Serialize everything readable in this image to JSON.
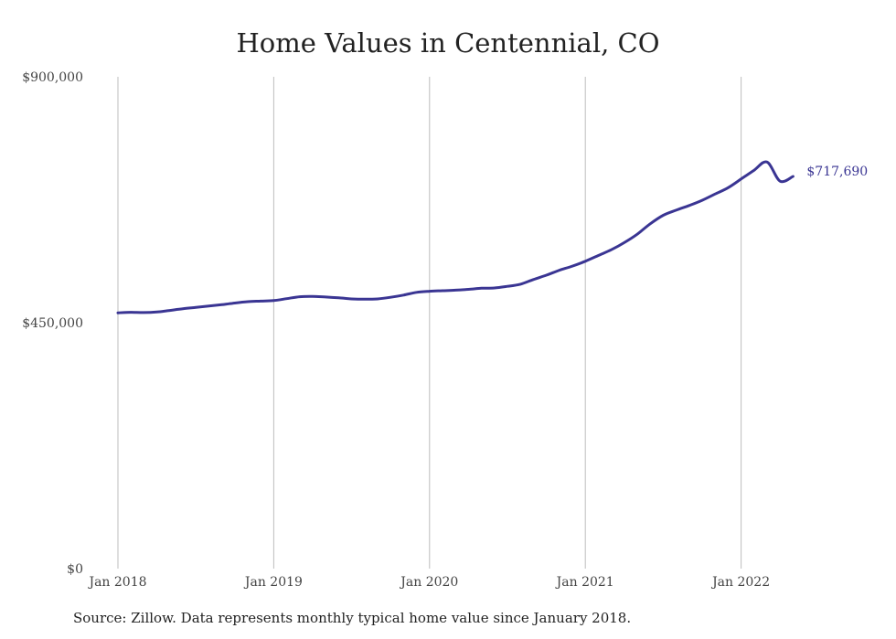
{
  "chart_data": {
    "type": "line",
    "title": "Home Values in Centennial, CO",
    "source": "Source: Zillow. Data represents monthly typical home value since January 2018.",
    "xlabel": "",
    "ylabel": "",
    "ylim": [
      0,
      900000
    ],
    "yticks": [
      {
        "value": 0,
        "label": "$0"
      },
      {
        "value": 450000,
        "label": "$450,000"
      },
      {
        "value": 900000,
        "label": "$900,000"
      }
    ],
    "xticks": [
      {
        "value": "2018-01",
        "label": "Jan 2018"
      },
      {
        "value": "2019-01",
        "label": "Jan 2019"
      },
      {
        "value": "2020-01",
        "label": "Jan 2020"
      },
      {
        "value": "2021-01",
        "label": "Jan 2021"
      },
      {
        "value": "2022-01",
        "label": "Jan 2022"
      }
    ],
    "grid": "vertical",
    "line_color": "#3a3593",
    "series": [
      {
        "end_label": "$717,690",
        "x": [
          "2018-01",
          "2018-02",
          "2018-03",
          "2018-04",
          "2018-05",
          "2018-06",
          "2018-07",
          "2018-08",
          "2018-09",
          "2018-10",
          "2018-11",
          "2018-12",
          "2019-01",
          "2019-02",
          "2019-03",
          "2019-04",
          "2019-05",
          "2019-06",
          "2019-07",
          "2019-08",
          "2019-09",
          "2019-10",
          "2019-11",
          "2019-12",
          "2020-01",
          "2020-02",
          "2020-03",
          "2020-04",
          "2020-05",
          "2020-06",
          "2020-07",
          "2020-08",
          "2020-09",
          "2020-10",
          "2020-11",
          "2020-12",
          "2021-01",
          "2021-02",
          "2021-03",
          "2021-04",
          "2021-05",
          "2021-06",
          "2021-07",
          "2021-08",
          "2021-09",
          "2021-10",
          "2021-11",
          "2021-12",
          "2022-01",
          "2022-02",
          "2022-03",
          "2022-04",
          "2022-05"
        ],
        "values": [
          468000,
          469000,
          468500,
          469500,
          472500,
          475500,
          478000,
          480500,
          483000,
          486000,
          488500,
          489500,
          490500,
          494000,
          497500,
          498000,
          497000,
          495500,
          493500,
          493000,
          493500,
          496500,
          500500,
          505500,
          507500,
          508500,
          509500,
          511000,
          513000,
          513500,
          516500,
          520500,
          529000,
          537000,
          546000,
          553500,
          562500,
          573000,
          583500,
          596500,
          612000,
          631000,
          646500,
          656000,
          664500,
          674000,
          685500,
          697000,
          713000,
          729000,
          744000,
          709000,
          717690
        ]
      }
    ]
  }
}
